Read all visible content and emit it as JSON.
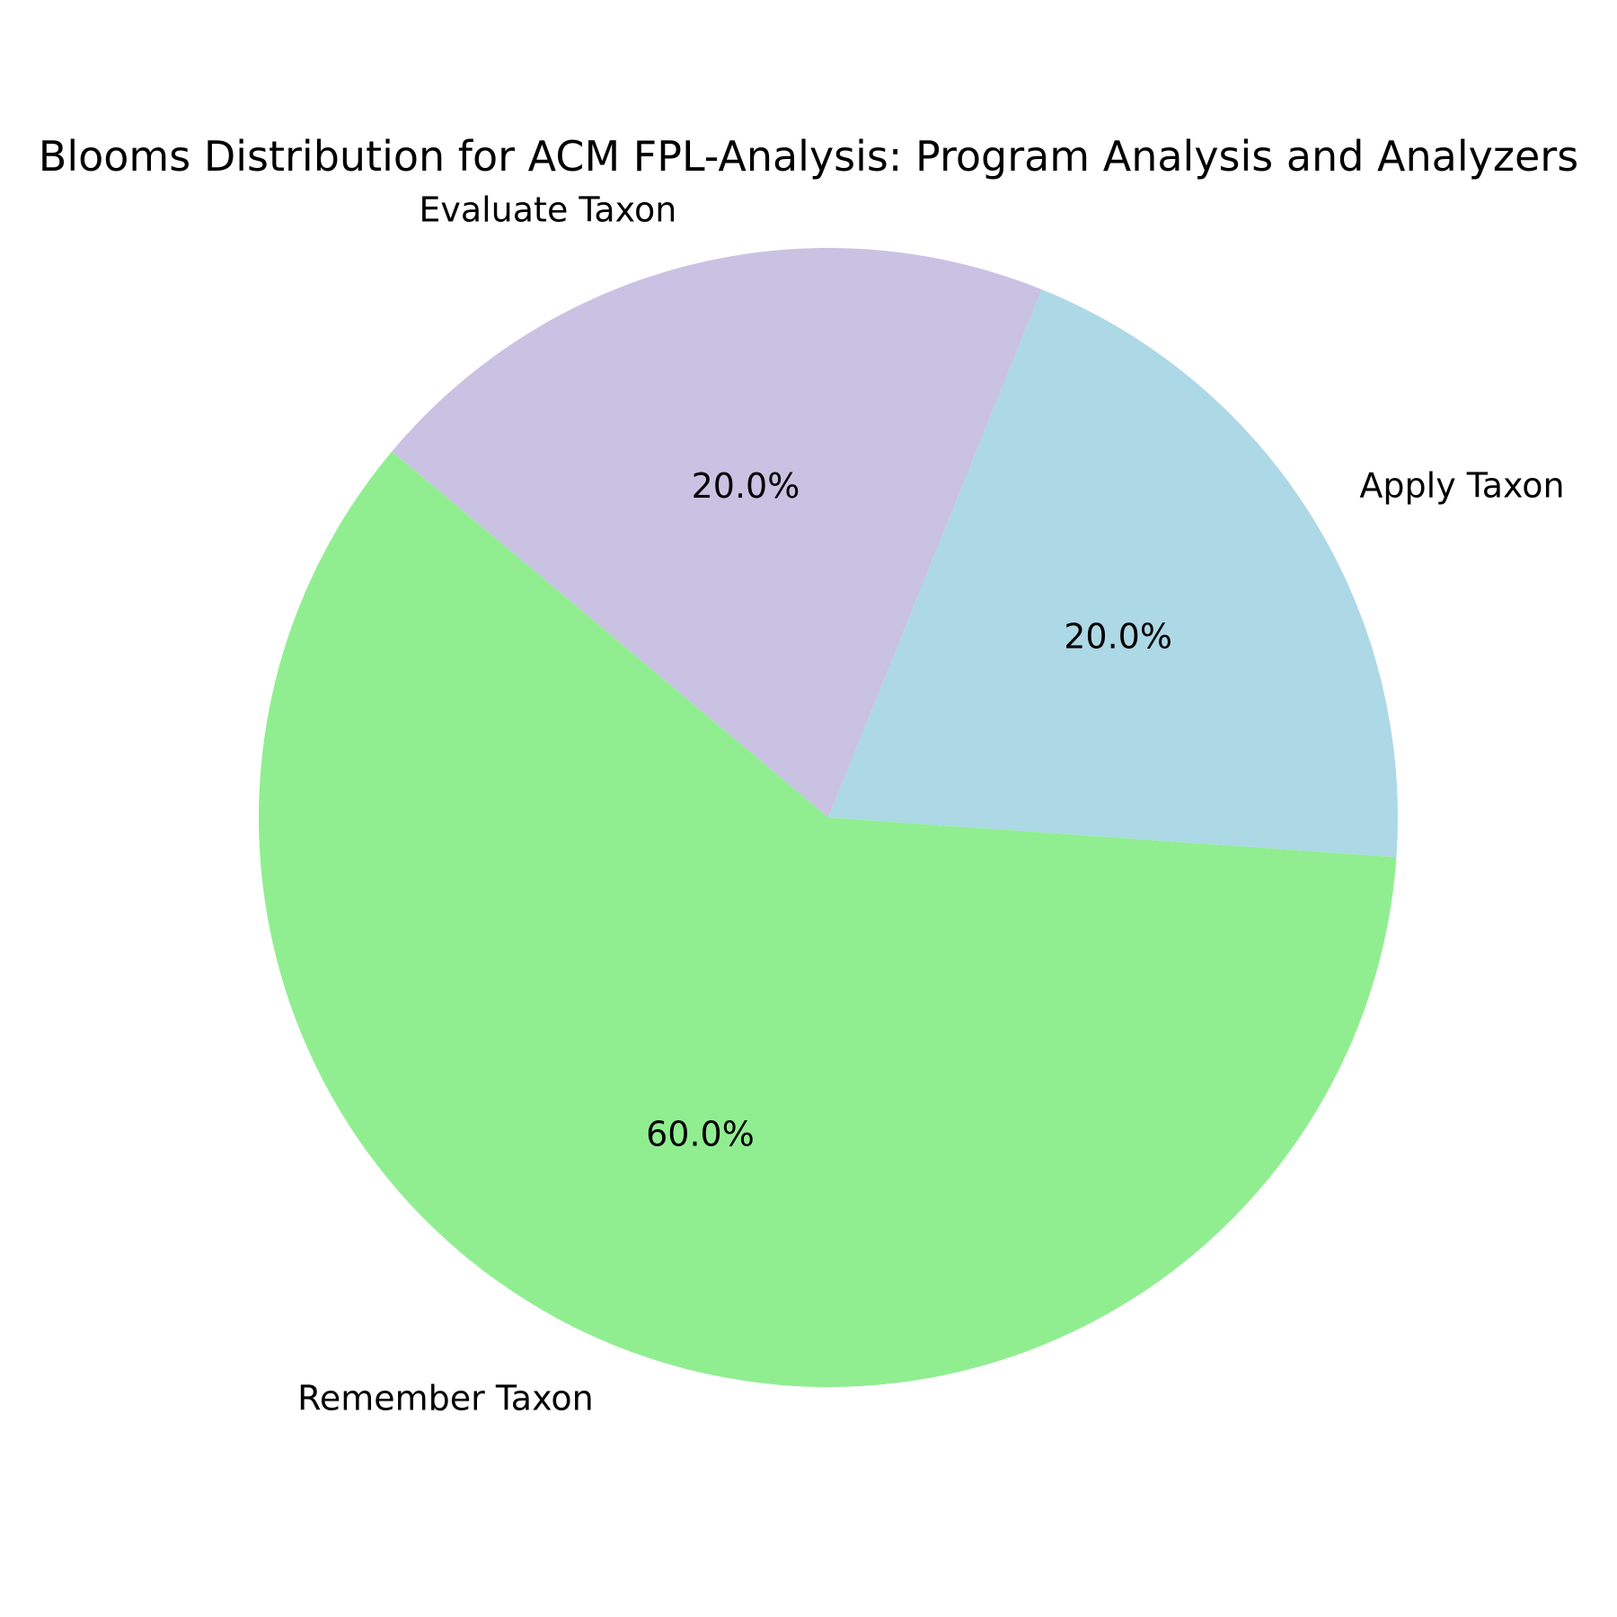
{
  "chart_data": {
    "type": "pie",
    "title": "Blooms Distribution for ACM FPL-Analysis: Program Analysis and Analyzers",
    "slices": [
      {
        "label": "Apply Taxon",
        "value": 20.0,
        "percent_label": "20.0%",
        "color": "#add8e6"
      },
      {
        "label": "Evaluate Taxon",
        "value": 20.0,
        "percent_label": "20.0%",
        "color": "#c9c2e2"
      },
      {
        "label": "Remember Taxon",
        "value": 60.0,
        "percent_label": "60.0%",
        "color": "#90ee90"
      }
    ],
    "start_angle_deg": -4,
    "direction": "counterclockwise",
    "legend": "none"
  }
}
